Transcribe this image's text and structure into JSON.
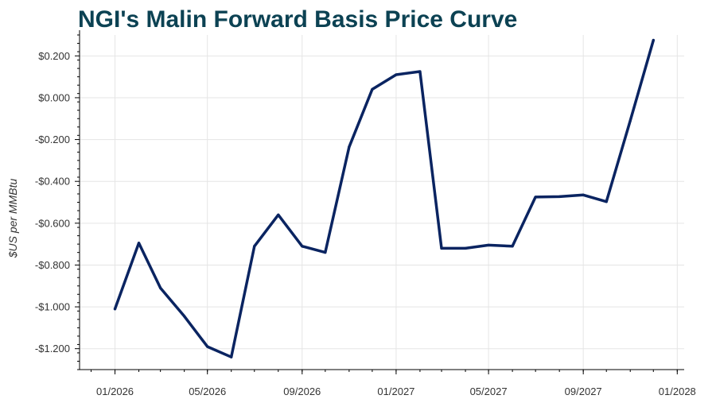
{
  "chart_data": {
    "type": "line",
    "title": "NGI's Malin Forward Basis Price Curve",
    "xlabel": "",
    "ylabel": "$US per MMBtu",
    "ylim": [
      -1.3,
      0.3
    ],
    "xlim": [
      "2025-11-16",
      "2028-01-10"
    ],
    "grid": true,
    "legend": "none",
    "line_color": "#0a2461",
    "yticks": [
      {
        "value": 0.2,
        "label": "$0.200"
      },
      {
        "value": 0.0,
        "label": "$0.000"
      },
      {
        "value": -0.2,
        "label": "-$0.200"
      },
      {
        "value": -0.4,
        "label": "-$0.400"
      },
      {
        "value": -0.6,
        "label": "-$0.600"
      },
      {
        "value": -0.8,
        "label": "-$0.800"
      },
      {
        "value": -1.0,
        "label": "-$1.000"
      },
      {
        "value": -1.2,
        "label": "-$1.200"
      }
    ],
    "xticks": [
      {
        "value": "2026-01-01",
        "label": "01/2026"
      },
      {
        "value": "2026-05-01",
        "label": "05/2026"
      },
      {
        "value": "2026-09-01",
        "label": "09/2026"
      },
      {
        "value": "2027-01-01",
        "label": "01/2027"
      },
      {
        "value": "2027-05-01",
        "label": "05/2027"
      },
      {
        "value": "2027-09-01",
        "label": "09/2027"
      },
      {
        "value": "2028-01-01",
        "label": "01/2028"
      }
    ],
    "x": [
      "2026-01-01",
      "2026-02-01",
      "2026-03-01",
      "2026-04-01",
      "2026-05-01",
      "2026-06-01",
      "2026-07-01",
      "2026-08-01",
      "2026-09-01",
      "2026-10-01",
      "2026-11-01",
      "2026-12-01",
      "2027-01-01",
      "2027-02-01",
      "2027-03-01",
      "2027-04-01",
      "2027-05-01",
      "2027-06-01",
      "2027-07-01",
      "2027-08-01",
      "2027-09-01",
      "2027-10-01",
      "2027-11-01",
      "2027-12-01"
    ],
    "series": [
      {
        "values": [
          -1.01,
          -0.695,
          -0.91,
          -1.045,
          -1.19,
          -1.24,
          -0.71,
          -0.56,
          -0.71,
          -0.74,
          -0.235,
          0.04,
          0.11,
          0.125,
          -0.72,
          -0.72,
          -0.705,
          -0.71,
          -0.475,
          -0.473,
          -0.465,
          -0.497,
          -0.11,
          0.275
        ]
      }
    ]
  }
}
